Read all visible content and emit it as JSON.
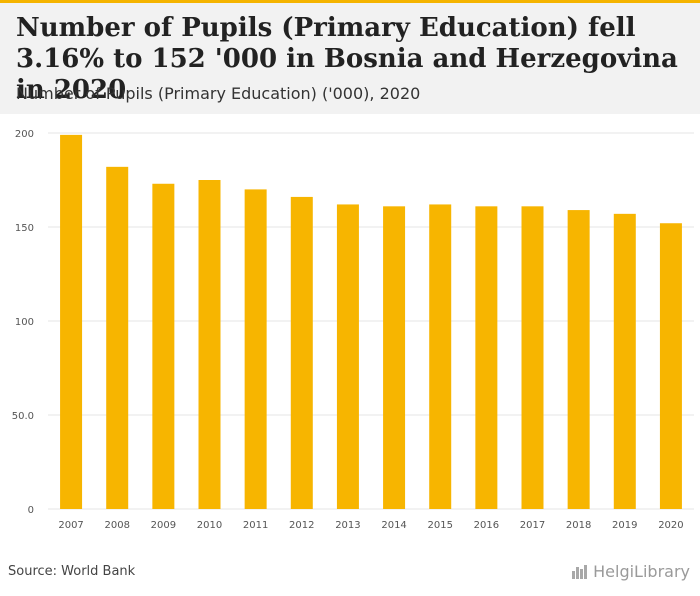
{
  "header": {
    "title": "Number of Pupils (Primary Education) fell 3.16% to 152 '000 in Bosnia and Herzegovina in 2020",
    "subtitle": "Number of Pupils (Primary Education) ('000), 2020"
  },
  "footer": {
    "source": "Source: World Bank",
    "brand": "HelgiLibrary"
  },
  "colors": {
    "bar": "#f7b500",
    "grid": "#e6e6e6",
    "accent": "#f5b400"
  },
  "chart_data": {
    "type": "bar",
    "title": "Number of Pupils (Primary Education) fell 3.16% to 152 '000 in Bosnia and Herzegovina in 2020",
    "subtitle": "Number of Pupils (Primary Education) ('000), 2020",
    "xlabel": "",
    "ylabel": "",
    "categories": [
      "2007",
      "2008",
      "2009",
      "2010",
      "2011",
      "2012",
      "2013",
      "2014",
      "2015",
      "2016",
      "2017",
      "2018",
      "2019",
      "2020"
    ],
    "values": [
      199,
      182,
      173,
      175,
      170,
      166,
      162,
      161,
      162,
      161,
      161,
      159,
      157,
      152
    ],
    "ylim": [
      0,
      200
    ],
    "yticks": [
      {
        "value": 0,
        "label": "0"
      },
      {
        "value": 50,
        "label": "50.0"
      },
      {
        "value": 100,
        "label": "100"
      },
      {
        "value": 150,
        "label": "150"
      },
      {
        "value": 200,
        "label": "200"
      }
    ],
    "grid": true,
    "legend": "none"
  }
}
